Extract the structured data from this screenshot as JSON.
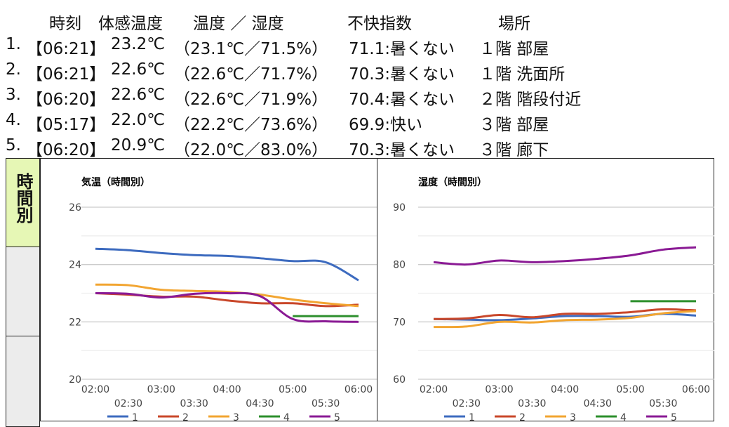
{
  "header": {
    "time": "時刻",
    "feel": "体感温度",
    "temp_hum": "温度 ／ 湿度",
    "discomfort": "不快指数",
    "place": "場所"
  },
  "rows": [
    {
      "num": "1.",
      "time": "【06:21】",
      "feel": "23.2℃",
      "temp_hum": "（23.1℃／71.5%）",
      "discomfort": "71.1:暑くない",
      "place": "１階 部屋"
    },
    {
      "num": "2.",
      "time": "【06:21】",
      "feel": "22.6℃",
      "temp_hum": "（22.6℃／71.7%）",
      "discomfort": "70.3:暑くない",
      "place": "１階 洗面所"
    },
    {
      "num": "3.",
      "time": "【06:20】",
      "feel": "22.6℃",
      "temp_hum": "（22.6℃／71.9%）",
      "discomfort": "70.4:暑くない",
      "place": "２階 階段付近"
    },
    {
      "num": "4.",
      "time": "【05:17】",
      "feel": "22.0℃",
      "temp_hum": "（22.2℃／73.6%）",
      "discomfort": "69.9:快い",
      "place": "３階 部屋"
    },
    {
      "num": "5.",
      "time": "【06:20】",
      "feel": "20.9℃",
      "temp_hum": "（22.0℃／83.0%）",
      "discomfort": "70.3:暑くない",
      "place": "３階 廊下"
    }
  ],
  "sidebar": {
    "active_tab": "時間別"
  },
  "colors": {
    "1": "#3d6bbf",
    "2": "#c9472a",
    "3": "#f2a531",
    "4": "#2c8f2c",
    "5": "#8a1a94"
  },
  "chart_data": [
    {
      "type": "line",
      "title": "気温（時間別）",
      "ylim": [
        20,
        26
      ],
      "yticks": [
        "20",
        "22",
        "24",
        "26"
      ],
      "ytick_values": [
        20,
        22,
        24,
        26
      ],
      "x": [
        "02:00",
        "02:30",
        "03:00",
        "03:30",
        "04:00",
        "04:30",
        "05:00",
        "05:30",
        "06:00"
      ],
      "series": [
        {
          "name": "1",
          "values": [
            24.55,
            24.5,
            24.4,
            24.33,
            24.3,
            24.22,
            24.12,
            24.08,
            23.45
          ]
        },
        {
          "name": "2",
          "values": [
            23.0,
            22.95,
            22.88,
            22.88,
            22.75,
            22.65,
            22.65,
            22.55,
            22.6
          ]
        },
        {
          "name": "3",
          "values": [
            23.3,
            23.28,
            23.12,
            23.08,
            23.05,
            22.95,
            22.78,
            22.65,
            22.55
          ]
        },
        {
          "name": "4",
          "values": [
            null,
            null,
            null,
            null,
            null,
            null,
            22.2,
            22.2,
            22.2
          ]
        },
        {
          "name": "5",
          "values": [
            23.0,
            22.98,
            22.85,
            22.98,
            23.0,
            22.9,
            22.1,
            22.02,
            22.0
          ]
        }
      ]
    },
    {
      "type": "line",
      "title": "湿度（時間別）",
      "ylim": [
        60,
        90
      ],
      "yticks": [
        "60",
        "70",
        "80",
        "90"
      ],
      "ytick_values": [
        60,
        70,
        80,
        90
      ],
      "x": [
        "02:00",
        "02:30",
        "03:00",
        "03:30",
        "04:00",
        "04:30",
        "05:00",
        "05:30",
        "06:00"
      ],
      "series": [
        {
          "name": "1",
          "values": [
            70.5,
            70.4,
            70.3,
            70.6,
            71.0,
            71.0,
            70.9,
            71.4,
            71.1
          ]
        },
        {
          "name": "2",
          "values": [
            70.5,
            70.6,
            71.2,
            70.8,
            71.4,
            71.4,
            71.7,
            72.2,
            72.0
          ]
        },
        {
          "name": "3",
          "values": [
            69.1,
            69.2,
            70.0,
            69.9,
            70.3,
            70.4,
            70.7,
            71.5,
            71.9
          ]
        },
        {
          "name": "4",
          "values": [
            null,
            null,
            null,
            null,
            null,
            null,
            73.6,
            73.6,
            73.6
          ]
        },
        {
          "name": "5",
          "values": [
            80.4,
            80.0,
            80.7,
            80.4,
            80.6,
            81.0,
            81.6,
            82.6,
            83.0
          ]
        }
      ]
    }
  ]
}
